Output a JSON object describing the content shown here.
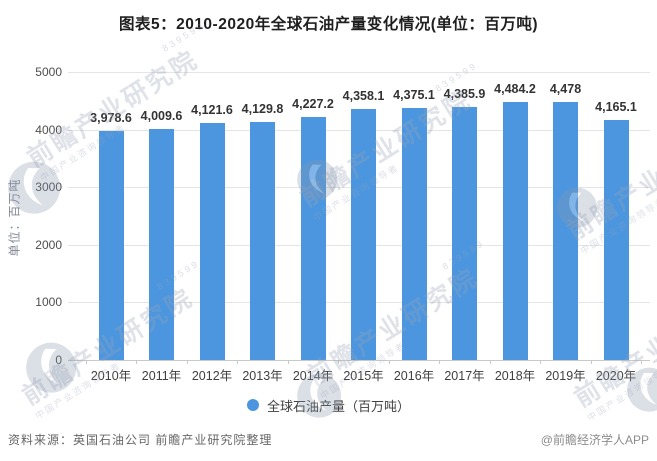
{
  "chart_data": {
    "type": "bar",
    "title": "图表5：2010-2020年全球石油产量变化情况(单位：百万吨)",
    "categories": [
      "2010年",
      "2011年",
      "2012年",
      "2013年",
      "2014年",
      "2015年",
      "2016年",
      "2017年",
      "2018年",
      "2019年",
      "2020年"
    ],
    "series": [
      {
        "name": "全球石油产量（百万吨）",
        "values": [
          3978.6,
          4009.6,
          4121.6,
          4129.8,
          4227.2,
          4358.1,
          4375.1,
          4385.9,
          4484.2,
          4478,
          4165.1
        ]
      }
    ],
    "value_labels": [
      "3,978.6",
      "4,009.6",
      "4,121.6",
      "4,129.8",
      "4,227.2",
      "4,358.1",
      "4,375.1",
      "4,385.9",
      "4,484.2",
      "4,478",
      "4,165.1"
    ],
    "xlabel": "",
    "ylabel": "单位：百万吨",
    "yticks": [
      0,
      1000,
      2000,
      3000,
      4000,
      5000
    ],
    "ylim": [
      0,
      5000
    ],
    "grid": true,
    "legend_position": "bottom",
    "bar_color": "#4B96DF"
  },
  "legend": {
    "label": "全球石油产量（百万吨）"
  },
  "footer": {
    "source": "资料来源：英国石油公司 前瞻产业研究院整理",
    "credit": "@前瞻经济学人APP"
  },
  "watermark": {
    "text": "前瞻产业研究院",
    "subtext": "中国产业咨询领导者",
    "digits": "839599"
  }
}
